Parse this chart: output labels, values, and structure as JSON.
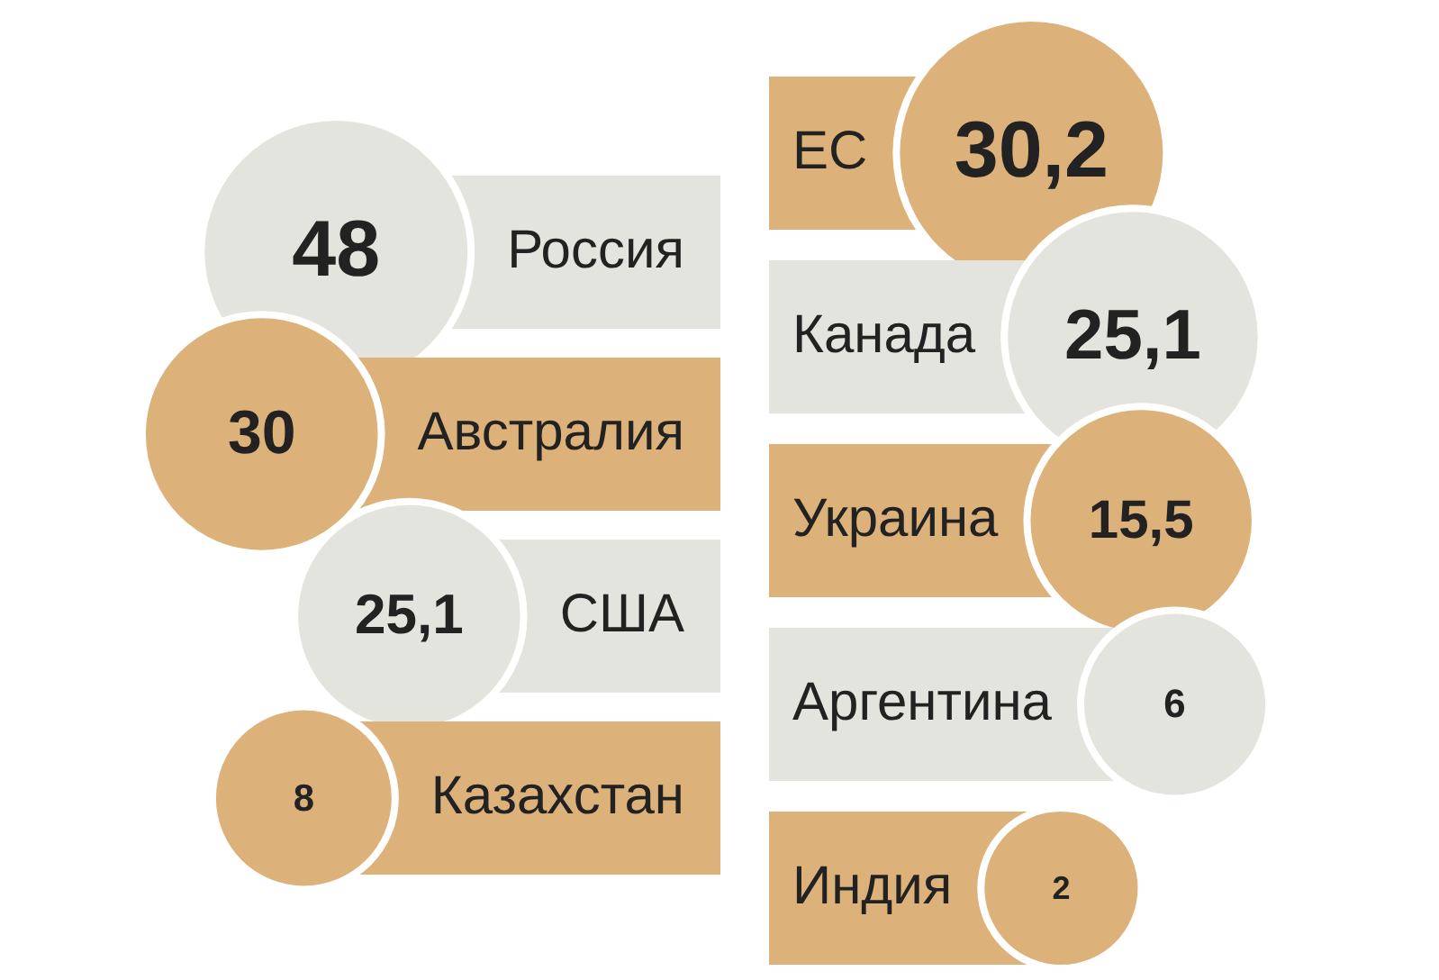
{
  "chart_data": [
    {
      "type": "other",
      "categories": [
        "Россия",
        "Австралия",
        "США",
        "Казахстан"
      ],
      "values": [
        48,
        30,
        25.1,
        8
      ],
      "value_labels": [
        "48",
        "30",
        "25,1",
        "8"
      ],
      "colors": [
        "#e3e4dd",
        "#dcb27a",
        "#e3e4dd",
        "#dcb27a"
      ]
    },
    {
      "type": "other",
      "categories": [
        "ЕС",
        "Канада",
        "Украина",
        "Аргентина",
        "Индия"
      ],
      "values": [
        30.2,
        25.1,
        15.5,
        6,
        2
      ],
      "value_labels": [
        "30,2",
        "25,1",
        "15,5",
        "6",
        "2"
      ],
      "colors": [
        "#dcb27a",
        "#e3e4dd",
        "#dcb27a",
        "#e3e4dd",
        "#dcb27a"
      ]
    }
  ]
}
